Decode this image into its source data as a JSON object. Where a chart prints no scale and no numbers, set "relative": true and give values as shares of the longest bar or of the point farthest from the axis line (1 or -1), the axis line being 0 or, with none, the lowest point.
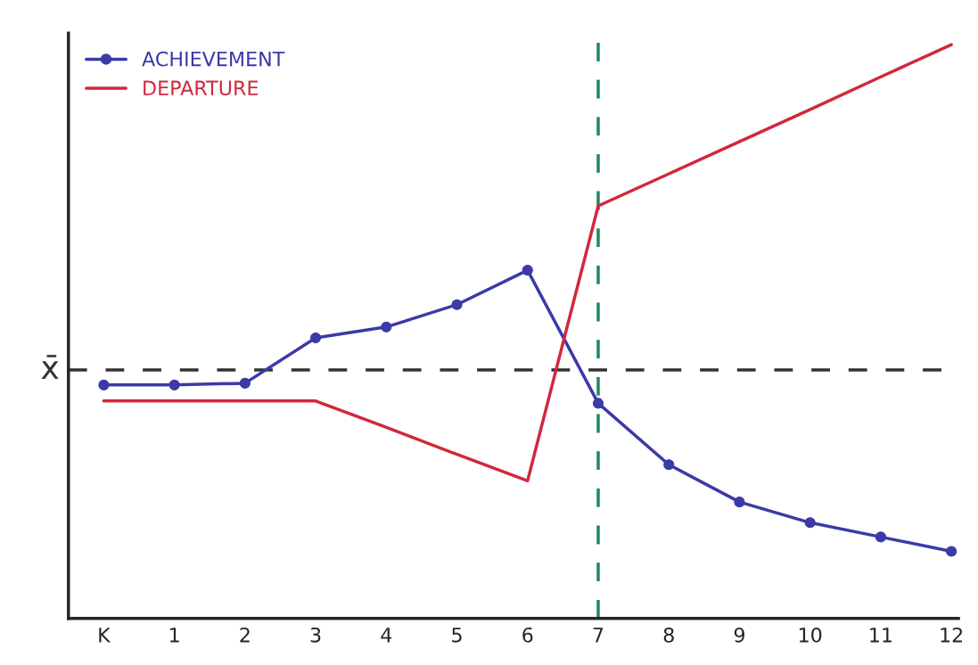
{
  "chart_data": {
    "type": "line",
    "relative": true,
    "categories": [
      "K",
      "1",
      "2",
      "3",
      "4",
      "5",
      "6",
      "7",
      "8",
      "9",
      "10",
      "11",
      "12"
    ],
    "series": [
      {
        "name": "ACHIEVEMENT",
        "color": "#3a3aa8",
        "marker": "circle",
        "values": [
          0.407,
          0.407,
          0.41,
          0.489,
          0.508,
          0.547,
          0.607,
          0.375,
          0.268,
          0.203,
          0.167,
          0.142,
          0.117
        ]
      },
      {
        "name": "DEPARTURE",
        "color": "#d0283c",
        "marker": "none",
        "values": [
          0.379,
          0.379,
          0.379,
          0.379,
          0.333,
          0.286,
          0.24,
          0.719,
          0.775,
          0.831,
          0.887,
          0.944,
          1.0
        ]
      }
    ],
    "ref_lines": [
      {
        "axis": "y",
        "value": 0.433,
        "label": "x̄",
        "color": "#333333",
        "line_style": "dashed"
      },
      {
        "axis": "x",
        "value": "7",
        "color": "#1a8a5a",
        "line_style": "dashed"
      }
    ],
    "legend": "top left",
    "grid": false
  }
}
